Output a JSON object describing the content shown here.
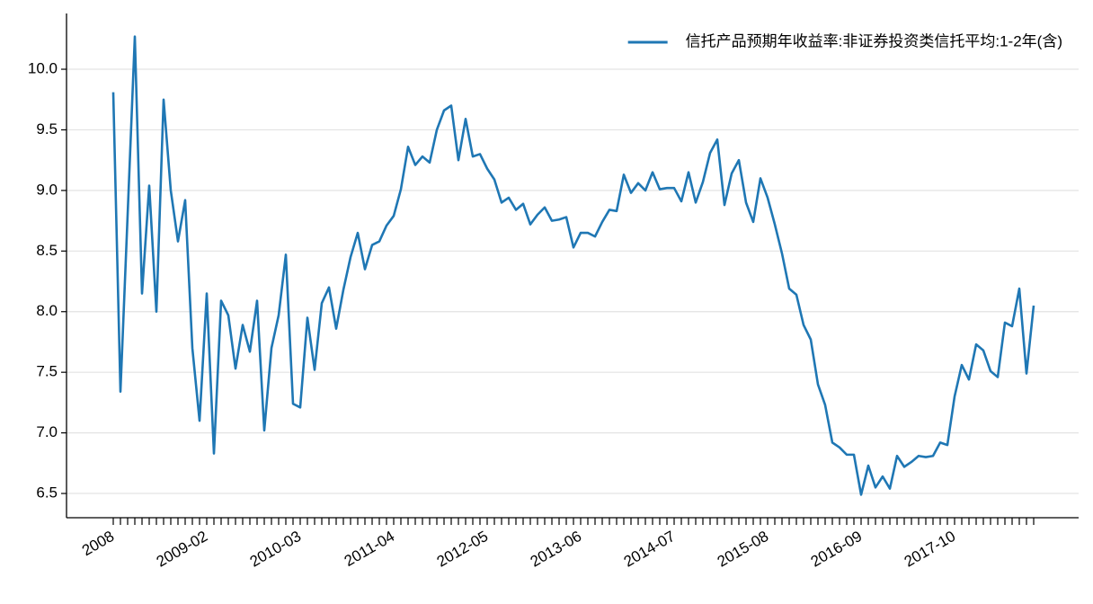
{
  "chart_data": {
    "type": "line",
    "categories": [
      "2008",
      null,
      null,
      null,
      null,
      null,
      null,
      null,
      null,
      null,
      null,
      null,
      null,
      "2009-02",
      null,
      null,
      null,
      null,
      null,
      null,
      null,
      null,
      null,
      null,
      null,
      null,
      "2010-03",
      null,
      null,
      null,
      null,
      null,
      null,
      null,
      null,
      null,
      null,
      null,
      null,
      "2011-04",
      null,
      null,
      null,
      null,
      null,
      null,
      null,
      null,
      null,
      null,
      null,
      null,
      "2012-05",
      null,
      null,
      null,
      null,
      null,
      null,
      null,
      null,
      null,
      null,
      null,
      null,
      "2013-06",
      null,
      null,
      null,
      null,
      null,
      null,
      null,
      null,
      null,
      null,
      null,
      null,
      "2014-07",
      null,
      null,
      null,
      null,
      null,
      null,
      null,
      null,
      null,
      null,
      null,
      null,
      "2015-08",
      null,
      null,
      null,
      null,
      null,
      null,
      null,
      null,
      null,
      null,
      null,
      null,
      "2016-09",
      null,
      null,
      null,
      null,
      null,
      null,
      null,
      null,
      null,
      null,
      null,
      null,
      "2017-10",
      null,
      null,
      null,
      null,
      null,
      null,
      null,
      null,
      null,
      null,
      null
    ],
    "series": [
      {
        "name": "信托产品预期年收益率:非证券投资类信托平均:1-2年(含)",
        "color": "#1f77b4",
        "values": [
          9.81,
          7.34,
          8.8,
          10.27,
          8.15,
          9.04,
          8.0,
          9.75,
          9.0,
          8.58,
          8.92,
          7.7,
          7.1,
          8.15,
          6.83,
          8.09,
          7.97,
          7.53,
          7.89,
          7.67,
          8.09,
          7.02,
          7.7,
          7.97,
          8.47,
          7.24,
          7.21,
          7.95,
          7.52,
          8.07,
          8.2,
          7.86,
          8.18,
          8.45,
          8.65,
          8.35,
          8.55,
          8.58,
          8.71,
          8.79,
          9.01,
          9.36,
          9.21,
          9.28,
          9.23,
          9.5,
          9.66,
          9.7,
          9.25,
          9.59,
          9.28,
          9.3,
          9.18,
          9.09,
          8.9,
          8.94,
          8.84,
          8.89,
          8.72,
          8.8,
          8.86,
          8.75,
          8.76,
          8.78,
          8.53,
          8.65,
          8.65,
          8.62,
          8.74,
          8.84,
          8.83,
          9.13,
          8.98,
          9.06,
          9.0,
          9.15,
          9.01,
          9.02,
          9.02,
          8.91,
          9.15,
          8.9,
          9.07,
          9.31,
          9.42,
          8.88,
          9.14,
          9.25,
          8.9,
          8.74,
          9.1,
          8.94,
          8.72,
          8.48,
          8.19,
          8.14,
          7.89,
          7.77,
          7.4,
          7.23,
          6.92,
          6.88,
          6.82,
          6.82,
          6.49,
          6.73,
          6.55,
          6.64,
          6.54,
          6.81,
          6.72,
          6.76,
          6.81,
          6.8,
          6.81,
          6.92,
          6.9,
          7.3,
          7.56,
          7.44,
          7.73,
          7.68,
          7.51,
          7.46,
          7.91,
          7.88,
          8.19,
          7.49,
          8.05
        ]
      }
    ],
    "ylim": [
      6.3,
      10.46
    ],
    "yticks": [
      6.5,
      {
        "value": 7,
        "label": "7.0"
      },
      7.5,
      {
        "value": 8,
        "label": "8.0"
      },
      8.5,
      {
        "value": 9,
        "label": "9.0"
      },
      9.5,
      {
        "value": 10,
        "label": "10.0"
      }
    ],
    "grid": true,
    "legend": "upper right"
  }
}
